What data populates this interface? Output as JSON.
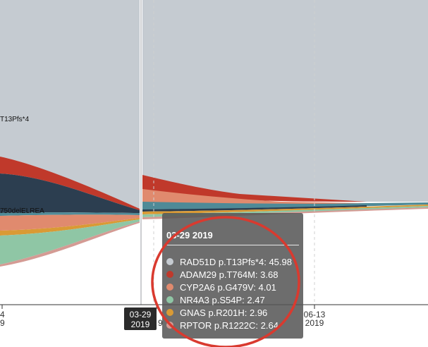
{
  "chart_data": {
    "type": "area",
    "x_ticks": [
      {
        "line1": "4",
        "line2": "9"
      },
      {
        "line1": "",
        "line2": "9"
      },
      {
        "line1": "06-13",
        "line2": "2019"
      }
    ],
    "stream_labels": [
      "T13Pfs*4",
      "750delELREA"
    ],
    "series": [
      {
        "name": "RAD51D p.T13Pfs*4",
        "color": "#c5cbd1"
      },
      {
        "name": "ADAM29 p.T764M",
        "color": "#c0392b"
      },
      {
        "name": "CYP2A6 p.G479V",
        "color": "#e08a6e"
      },
      {
        "name": "NR4A3 p.S54P",
        "color": "#8fc6a5"
      },
      {
        "name": "GNAS p.R201H",
        "color": "#d99a35"
      },
      {
        "name": "RPTOR p.R1222C",
        "color": "#d49b94"
      },
      {
        "name": "",
        "color": "#2c3e50"
      },
      {
        "name": "",
        "color": "#4f8a97"
      }
    ]
  },
  "tooltip": {
    "title": "03-29 2019",
    "rows": [
      {
        "label": "RAD51D p.T13Pfs*4: 45.98",
        "color": "#c5cbd1"
      },
      {
        "label": "ADAM29 p.T764M: 3.68",
        "color": "#c0392b"
      },
      {
        "label": "CYP2A6 p.G479V: 4.01",
        "color": "#e08a6e"
      },
      {
        "label": "NR4A3 p.S54P: 2.47",
        "color": "#8fc6a5"
      },
      {
        "label": "GNAS p.R201H: 2.96",
        "color": "#d99a35"
      },
      {
        "label": "RPTOR p.R1222C: 2.64",
        "color": "#d49b94"
      }
    ]
  },
  "hover_date": {
    "line1": "03-29",
    "line2": "2019"
  },
  "highlight_color": "#d93a2f"
}
